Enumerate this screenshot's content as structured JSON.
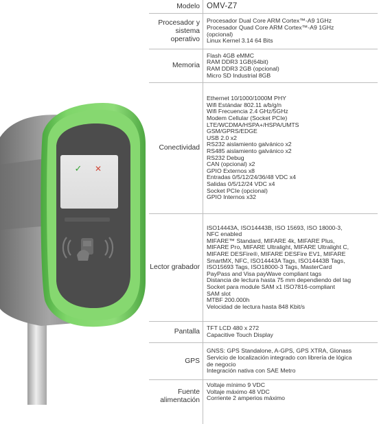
{
  "specs": [
    {
      "label": "Modelo",
      "lines": [
        "OMV-Z7"
      ]
    },
    {
      "label": "Procesador y sistema operativo",
      "lines": [
        "Procesador Dual Core ARM Cortex™-A9 1GHz",
        "Procesador Quad Core ARM Cortex™-A9 1GHz",
        "(opcional)",
        "Linux Kernel 3.14 64 Bits"
      ]
    },
    {
      "label": "Memoria",
      "lines": [
        "Flash  4GB eMMC",
        "RAM DDR3   1GB(64bit)",
        "RAM DDR3   2GB (opcional)",
        "Micro SD Industrial  8GB"
      ]
    },
    {
      "label": "Conectividad",
      "lines": [
        "Ethernet 10/1000/1000M PHY",
        "Wifi Estándar     802.11 a/b/g/n",
        "Wifi Frecuencia    2.4 GHz/5GHz",
        "Modem Cellular (Socket PCIe)",
        "LTE/WCDMA/HSPA+/HSPA/UMTS",
        "GSM/GPRS/EDGE",
        "USB 2.0 x2",
        "RS232 aislamiento galvánico x2",
        "RS485 aislamiento galvánico x2",
        "RS232 Debug",
        "CAN (opcional) x2",
        "GPIO Externos x8",
        "Entradas 0/5/12/24/36/48 VDC x4",
        "Salidas   0/5/12/24 VDC x4",
        "Socket PCIe (opcional)",
        "GPIO Internos x32"
      ]
    },
    {
      "label": "Lector grabador",
      "lines": [
        "ISO14443A, ISO14443B, ISO 15693, ISO 18000-3,",
        "NFC enabled",
        "MIFARE™ Standard, MIFARE 4k, MIFARE Plus,",
        "MIFARE Pro, MIFARE Ultralight, MIFARE Ultralight C,",
        "MIFARE DESFire®, MIFARE DESFire EV1, MIFARE",
        "SmartMX, NFC, ISO14443A Tags, ISO14443B Tags,",
        "ISO15693 Tags, ISO18000-3 Tags, MasterCard",
        "PayPass and Visa payWave compliant tags",
        "Distancia de lectura hasta 75 mm dependiendo del tag",
        "Socket para module SAM x1 ISO7816-compliant",
        "SAM slot",
        "MTBF 200.000h",
        "Velocidad de lectura hasta 848 Kbit/s"
      ]
    },
    {
      "label": "Pantalla",
      "lines": [
        "TFT LCD 480 x 272",
        "Capacitive Touch Display"
      ]
    },
    {
      "label": "GPS",
      "lines": [
        "GNSS: GPS Standalone, A-GPS, GPS XTRA, Glonass",
        "Servicio de localización integrado con librería de lógica",
        "de negocio",
        "Integración nativa con SAE Metro"
      ]
    },
    {
      "label": "Fuente alimentación",
      "lines": [
        "Voltaje mínimo 9 VDC",
        "Voltaje máximo 48 VDC",
        "Corriente 2 amperios máximo"
      ]
    }
  ],
  "device": {
    "check_symbol": "✓",
    "cross_symbol": "✕",
    "colors": {
      "shell": "#7ed36a",
      "shell_dark": "#4fae45",
      "body": "#9a9a9a",
      "pole": "#d2d2d2"
    }
  }
}
